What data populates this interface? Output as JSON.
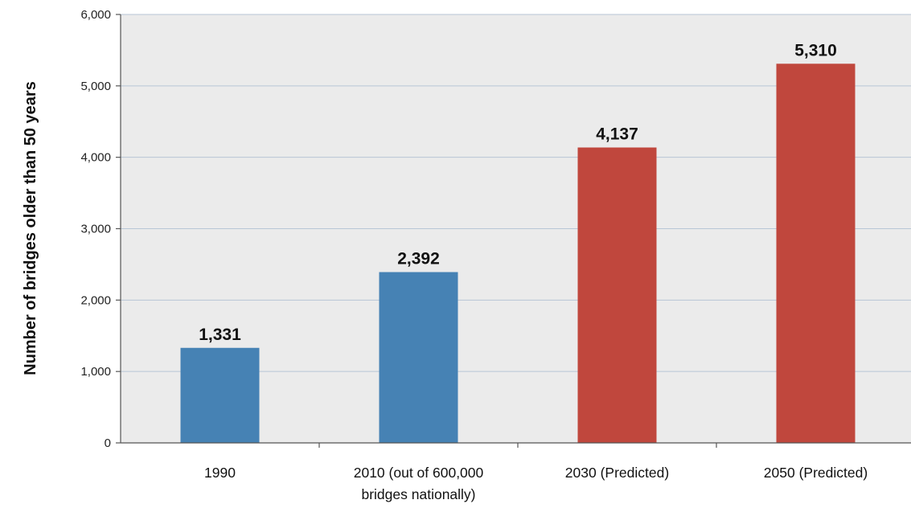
{
  "chart_data": {
    "type": "bar",
    "categories": [
      [
        "1990"
      ],
      [
        "2010 (out of 600,000",
        "bridges nationally)"
      ],
      [
        "2030 (Predicted)"
      ],
      [
        "2050 (Predicted)"
      ]
    ],
    "values": [
      1331,
      2392,
      4137,
      5310
    ],
    "value_labels": [
      "1,331",
      "2,392",
      "4,137",
      "5,310"
    ],
    "bar_colors": [
      "#4682b4",
      "#4682b4",
      "#c0473d",
      "#c0473d"
    ],
    "title": "",
    "xlabel": "",
    "ylabel": "Number of bridges older than 50 years",
    "ylim": [
      0,
      6000
    ],
    "yticks": [
      0,
      1000,
      2000,
      3000,
      4000,
      5000,
      6000
    ],
    "ytick_labels": [
      "0",
      "1,000",
      "2,000",
      "3,000",
      "4,000",
      "5,000",
      "6,000"
    ],
    "grid": true,
    "plot_background": "#ebebeb",
    "grid_color": "#b7c6d6"
  }
}
